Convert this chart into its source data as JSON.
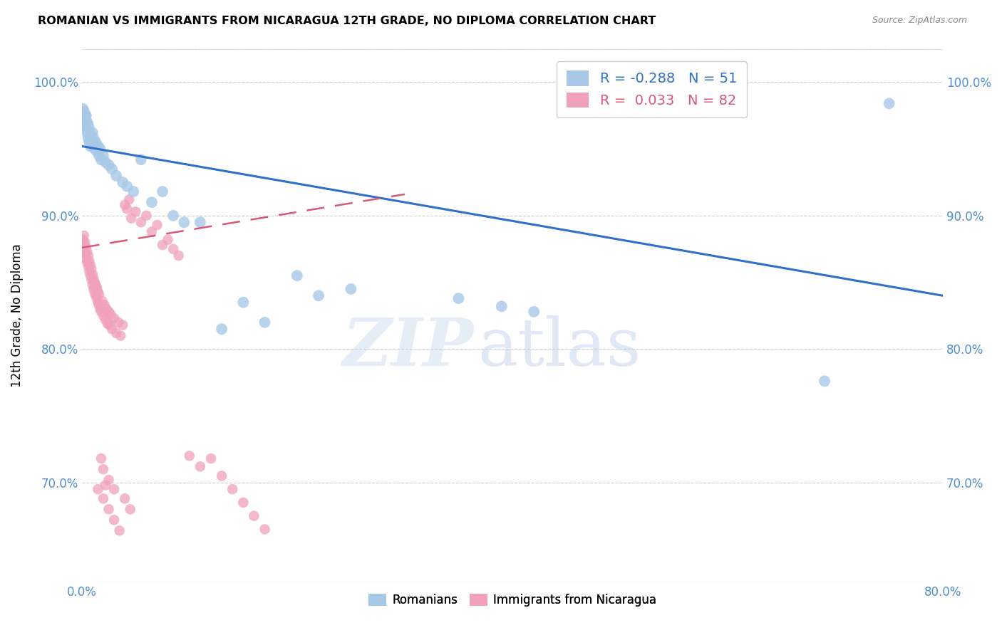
{
  "title": "ROMANIAN VS IMMIGRANTS FROM NICARAGUA 12TH GRADE, NO DIPLOMA CORRELATION CHART",
  "source": "Source: ZipAtlas.com",
  "ylabel": "12th Grade, No Diploma",
  "xlim": [
    0.0,
    0.8
  ],
  "ylim": [
    0.625,
    1.025
  ],
  "yticks": [
    0.7,
    0.8,
    0.9,
    1.0
  ],
  "ytick_labels": [
    "70.0%",
    "80.0%",
    "90.0%",
    "100.0%"
  ],
  "xticks": [
    0.0,
    0.1,
    0.2,
    0.3,
    0.4,
    0.5,
    0.6,
    0.7,
    0.8
  ],
  "xtick_labels": [
    "0.0%",
    "",
    "",
    "",
    "",
    "",
    "",
    "",
    "80.0%"
  ],
  "blue_R": -0.288,
  "blue_N": 51,
  "pink_R": 0.033,
  "pink_N": 82,
  "blue_color": "#a8c8e8",
  "pink_color": "#f0a0b8",
  "blue_line_color": "#3070c8",
  "pink_line_color": "#d85878",
  "axis_color": "#5090d0",
  "legend_blue_label": "Romanians",
  "legend_pink_label": "Immigrants from Nicaragua",
  "watermark_zip": "ZIP",
  "watermark_atlas": "atlas",
  "blue_scatter_x": [
    0.001,
    0.002,
    0.002,
    0.003,
    0.003,
    0.004,
    0.004,
    0.005,
    0.005,
    0.006,
    0.006,
    0.007,
    0.007,
    0.008,
    0.008,
    0.009,
    0.01,
    0.01,
    0.011,
    0.012,
    0.013,
    0.014,
    0.015,
    0.016,
    0.017,
    0.018,
    0.02,
    0.022,
    0.025,
    0.028,
    0.032,
    0.038,
    0.042,
    0.048,
    0.055,
    0.065,
    0.075,
    0.085,
    0.095,
    0.11,
    0.13,
    0.15,
    0.17,
    0.2,
    0.22,
    0.25,
    0.35,
    0.39,
    0.42,
    0.69,
    0.75
  ],
  "blue_scatter_y": [
    0.98,
    0.978,
    0.972,
    0.975,
    0.968,
    0.975,
    0.965,
    0.97,
    0.962,
    0.968,
    0.958,
    0.965,
    0.955,
    0.96,
    0.952,
    0.958,
    0.962,
    0.955,
    0.958,
    0.95,
    0.955,
    0.948,
    0.952,
    0.945,
    0.95,
    0.942,
    0.945,
    0.94,
    0.938,
    0.935,
    0.93,
    0.925,
    0.922,
    0.918,
    0.942,
    0.91,
    0.918,
    0.9,
    0.895,
    0.895,
    0.815,
    0.835,
    0.82,
    0.855,
    0.84,
    0.845,
    0.838,
    0.832,
    0.828,
    0.776,
    0.984
  ],
  "pink_scatter_x": [
    0.001,
    0.001,
    0.002,
    0.002,
    0.003,
    0.003,
    0.004,
    0.004,
    0.005,
    0.005,
    0.006,
    0.006,
    0.007,
    0.007,
    0.008,
    0.008,
    0.009,
    0.009,
    0.01,
    0.01,
    0.011,
    0.011,
    0.012,
    0.012,
    0.013,
    0.013,
    0.014,
    0.014,
    0.015,
    0.015,
    0.016,
    0.016,
    0.017,
    0.018,
    0.019,
    0.02,
    0.021,
    0.022,
    0.023,
    0.024,
    0.025,
    0.026,
    0.027,
    0.028,
    0.03,
    0.032,
    0.034,
    0.036,
    0.038,
    0.04,
    0.042,
    0.044,
    0.046,
    0.05,
    0.055,
    0.06,
    0.065,
    0.07,
    0.075,
    0.08,
    0.085,
    0.09,
    0.1,
    0.11,
    0.12,
    0.13,
    0.14,
    0.15,
    0.16,
    0.17,
    0.015,
    0.02,
    0.025,
    0.03,
    0.035,
    0.04,
    0.045,
    0.02,
    0.025,
    0.03,
    0.018,
    0.022
  ],
  "pink_scatter_y": [
    0.875,
    0.882,
    0.878,
    0.885,
    0.872,
    0.88,
    0.868,
    0.876,
    0.865,
    0.873,
    0.862,
    0.87,
    0.858,
    0.866,
    0.855,
    0.863,
    0.852,
    0.86,
    0.848,
    0.856,
    0.845,
    0.853,
    0.842,
    0.85,
    0.84,
    0.848,
    0.838,
    0.846,
    0.835,
    0.843,
    0.833,
    0.841,
    0.83,
    0.828,
    0.836,
    0.825,
    0.833,
    0.822,
    0.83,
    0.819,
    0.828,
    0.818,
    0.826,
    0.815,
    0.823,
    0.812,
    0.82,
    0.81,
    0.818,
    0.908,
    0.905,
    0.912,
    0.898,
    0.903,
    0.895,
    0.9,
    0.888,
    0.893,
    0.878,
    0.882,
    0.875,
    0.87,
    0.72,
    0.712,
    0.718,
    0.705,
    0.695,
    0.685,
    0.675,
    0.665,
    0.695,
    0.688,
    0.68,
    0.672,
    0.664,
    0.688,
    0.68,
    0.71,
    0.702,
    0.695,
    0.718,
    0.698
  ],
  "blue_trend_x": [
    0.0,
    0.8
  ],
  "blue_trend_y": [
    0.952,
    0.84
  ],
  "pink_trend_x": [
    0.0,
    0.3
  ],
  "pink_trend_y": [
    0.876,
    0.916
  ]
}
